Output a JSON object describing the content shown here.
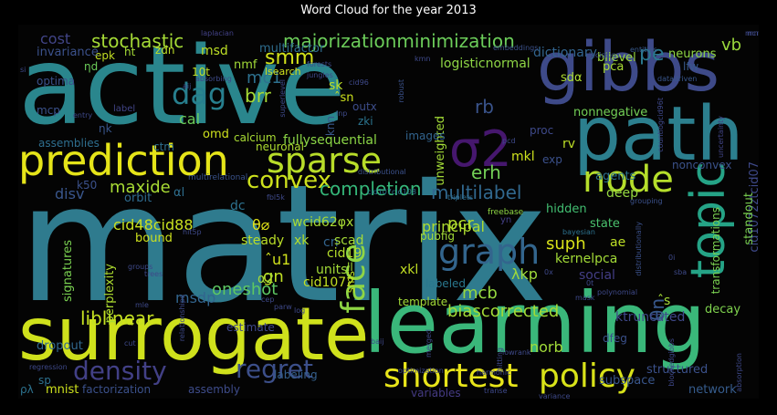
{
  "title": "Word Cloud for the year 2013",
  "words": [
    {
      "text": "matrix",
      "color": "#2f7b8e"
    },
    {
      "text": "active",
      "color": "#2a868d"
    },
    {
      "text": "learning",
      "color": "#3ab77a"
    },
    {
      "text": "surrogate",
      "color": "#cfe11c"
    },
    {
      "text": "path",
      "color": "#2c7f8e"
    },
    {
      "text": "gibbs",
      "color": "#3e4a89"
    },
    {
      "text": "prediction",
      "color": "#e5e419"
    },
    {
      "text": "topic",
      "color": "#25a386"
    },
    {
      "text": "sparse",
      "color": "#b8dd29"
    },
    {
      "text": "σ2",
      "color": "#46176e"
    },
    {
      "text": "node",
      "color": "#b5de2b"
    },
    {
      "text": "graph",
      "color": "#33658d"
    },
    {
      "text": "face",
      "color": "#8fd644"
    },
    {
      "text": "shortest",
      "color": "#e8e51a"
    },
    {
      "text": "policy",
      "color": "#d8e219"
    },
    {
      "text": "density",
      "color": "#424086"
    },
    {
      "text": "regret",
      "color": "#3c4f8a"
    },
    {
      "text": "dag",
      "color": "#277f8e"
    },
    {
      "text": "convex",
      "color": "#cde11d"
    },
    {
      "text": "stochastic",
      "color": "#a5db36"
    },
    {
      "text": "majorizationminimization",
      "color": "#6ccd5a"
    },
    {
      "text": "rb",
      "color": "#3a548c"
    },
    {
      "text": "multilabel",
      "color": "#31688e"
    },
    {
      "text": "smm",
      "color": "#d2e21b"
    },
    {
      "text": "brr",
      "color": "#a8db34"
    },
    {
      "text": "mc1",
      "color": "#2d708e"
    },
    {
      "text": "pe",
      "color": "#2a788e"
    },
    {
      "text": "vb",
      "color": "#9bd93c"
    },
    {
      "text": "cost",
      "color": "#414487"
    },
    {
      "text": "completion",
      "color": "#35b779"
    },
    {
      "text": "erh",
      "color": "#73d056"
    },
    {
      "text": "pcr",
      "color": "#b5de2b"
    },
    {
      "text": "suph",
      "color": "#d8e219"
    },
    {
      "text": "principal",
      "color": "#addc30"
    },
    {
      "text": "mcb",
      "color": "#95d840"
    },
    {
      "text": "biascorrected",
      "color": "#a2da37"
    },
    {
      "text": "liblinear",
      "color": "#c5e021"
    },
    {
      "text": "oneshot",
      "color": "#5dc863"
    },
    {
      "text": "θn",
      "color": "#38588c"
    },
    {
      "text": "maxide",
      "color": "#a8db34"
    },
    {
      "text": "disv",
      "color": "#39568c"
    },
    {
      "text": "norb",
      "color": "#a0da39"
    },
    {
      "text": "ktruncated",
      "color": "#3f4889"
    },
    {
      "text": "structured",
      "color": "#3b518b"
    },
    {
      "text": "subspace",
      "color": "#39568c"
    },
    {
      "text": "network",
      "color": "#365c8d"
    },
    {
      "text": "cid1072ztcid07",
      "color": "#3e4989"
    },
    {
      "text": "transformations",
      "color": "#7ad151"
    },
    {
      "text": "decay",
      "color": "#7fd34e"
    },
    {
      "text": "standout",
      "color": "#7ad151"
    },
    {
      "text": "msdp",
      "color": "#32658e"
    },
    {
      "text": "steady",
      "color": "#bade28"
    },
    {
      "text": "cid48cid88",
      "color": "#c8e020"
    },
    {
      "text": "gn",
      "color": "#c0df25"
    },
    {
      "text": "θ⌀",
      "color": "#e2e418"
    },
    {
      "text": "ˆu1",
      "color": "#d0e11c"
    },
    {
      "text": "α2",
      "color": "#a2da37"
    },
    {
      "text": "units",
      "color": "#a2da37"
    },
    {
      "text": "cid1072",
      "color": "#c2df23"
    },
    {
      "text": "cid19",
      "color": "#b5de2b"
    },
    {
      "text": "cn",
      "color": "#32648e"
    },
    {
      "text": "xk",
      "color": "#b2dd2d"
    },
    {
      "text": "wcid62φx",
      "color": "#a8db34"
    },
    {
      "text": "scad",
      "color": "#a5db36"
    },
    {
      "text": "ae",
      "color": "#bddf26"
    },
    {
      "text": "state",
      "color": "#4ac16d"
    },
    {
      "text": "hidden",
      "color": "#42be71"
    },
    {
      "text": "λkp",
      "color": "#9fda3a"
    },
    {
      "text": "social",
      "color": "#433e85"
    },
    {
      "text": "kernelpca",
      "color": "#a2da37"
    },
    {
      "text": "deep",
      "color": "#95d840"
    },
    {
      "text": "agents",
      "color": "#2c728e"
    },
    {
      "text": "nonconvex",
      "color": "#3b528b"
    },
    {
      "text": "fullysequential",
      "color": "#8bd646"
    },
    {
      "text": "neuronal",
      "color": "#addc30"
    },
    {
      "text": "calcium",
      "color": "#a8db34"
    },
    {
      "text": "omd",
      "color": "#cde11d"
    },
    {
      "text": "ctm",
      "color": "#2e6e8e"
    },
    {
      "text": "cal",
      "color": "#6ccd5a"
    },
    {
      "text": "nmf",
      "color": "#a2da37"
    },
    {
      "text": "msd",
      "color": "#bddf26"
    },
    {
      "text": "multifactor",
      "color": "#2e6d8e"
    },
    {
      "text": "logisticnormal",
      "color": "#8ed645"
    },
    {
      "text": "dictionary",
      "color": "#32648e"
    },
    {
      "text": "bilevel",
      "color": "#99d83d"
    },
    {
      "text": "neurons",
      "color": "#8fd744"
    },
    {
      "text": "lfw",
      "color": "#38598c"
    },
    {
      "text": "pca",
      "color": "#a8db34"
    },
    {
      "text": "sdα",
      "color": "#addc30"
    },
    {
      "text": "nonnegative",
      "color": "#73d056"
    },
    {
      "text": "unweighted",
      "color": "#a2da37"
    },
    {
      "text": "mkl",
      "color": "#cde11d"
    },
    {
      "text": "rv",
      "color": "#bddf26"
    },
    {
      "text": "proc",
      "color": "#3e4989"
    },
    {
      "text": "images",
      "color": "#32648e"
    },
    {
      "text": "exp",
      "color": "#3b518b"
    },
    {
      "text": "zki",
      "color": "#2b748e"
    },
    {
      "text": "outx",
      "color": "#3d4d8a"
    },
    {
      "text": "knn",
      "color": "#38588c"
    },
    {
      "text": "sk",
      "color": "#bddf26"
    },
    {
      "text": "ˆsn",
      "color": "#cde11d"
    },
    {
      "text": "lsearch",
      "color": "#d0e11c"
    },
    {
      "text": "10t",
      "color": "#c0df25"
    },
    {
      "text": "zdn",
      "color": "#bddf26"
    },
    {
      "text": "ht",
      "color": "#a5db36"
    },
    {
      "text": "epk",
      "color": "#c2df23"
    },
    {
      "text": "invariance",
      "color": "#3b518b"
    },
    {
      "text": "ηd",
      "color": "#6ccd5a"
    },
    {
      "text": "optima",
      "color": "#3b518b"
    },
    {
      "text": "mcp",
      "color": "#3b528b"
    },
    {
      "text": "ηk",
      "color": "#39568c"
    },
    {
      "text": "assemblies",
      "color": "#2e6e8e"
    },
    {
      "text": "k50",
      "color": "#3b518b"
    },
    {
      "text": "orbit",
      "color": "#2f6b8e"
    },
    {
      "text": "αl",
      "color": "#2e6e8e"
    },
    {
      "text": "bound",
      "color": "#cde11d"
    },
    {
      "text": "signatures",
      "color": "#7ad151"
    },
    {
      "text": "perplexity",
      "color": "#addc30"
    },
    {
      "text": "dropout",
      "color": "#31688e"
    },
    {
      "text": "sp",
      "color": "#2d708e"
    },
    {
      "text": "ρλ",
      "color": "#2c728e"
    },
    {
      "text": "mnist",
      "color": "#cde11d"
    },
    {
      "text": "factorization",
      "color": "#3b518b"
    },
    {
      "text": "assembly",
      "color": "#3e4c8a"
    },
    {
      "text": "labeling",
      "color": "#35608d"
    },
    {
      "text": "variables",
      "color": "#443a83"
    },
    {
      "text": "template",
      "color": "#a2da37"
    },
    {
      "text": "xkl",
      "color": "#c2df23"
    },
    {
      "text": "sms",
      "color": "#bddf26"
    },
    {
      "text": "estimate",
      "color": "#3f4889"
    },
    {
      "text": "labeled",
      "color": "#2a788e"
    },
    {
      "text": "pubfig",
      "color": "#a2da37"
    },
    {
      "text": "ll",
      "color": "#a5db36"
    },
    {
      "text": "dfeg",
      "color": "#3b518b"
    },
    {
      "text": "ˆs",
      "color": "#a5db36"
    },
    {
      "text": "dc",
      "color": "#2c718e"
    },
    {
      "text": "multirelational",
      "color": "#3a538b"
    },
    {
      "text": "cid107cid108",
      "color": "#2c718e"
    },
    {
      "text": "bayesian",
      "color": "#2c718e"
    },
    {
      "text": "freebase",
      "color": "#8fd744"
    },
    {
      "text": "triplets",
      "color": "#2e6d8e"
    },
    {
      "text": "yn",
      "color": "#433e85"
    },
    {
      "text": "absorbing",
      "color": "#3e4a89"
    },
    {
      "text": "embeddings",
      "color": "#3b518b"
    },
    {
      "text": "datadriven",
      "color": "#39568c"
    },
    {
      "text": "entities",
      "color": "#38598c"
    },
    {
      "text": "countlogcid96t",
      "color": "#3f4889"
    },
    {
      "text": "uncertainty",
      "color": "#414487"
    },
    {
      "text": "laplacian",
      "color": "#424186"
    },
    {
      "text": "decision",
      "color": "#3b518b"
    },
    {
      "text": "forests",
      "color": "#3e4989"
    },
    {
      "text": "jungles",
      "color": "#3e4989"
    },
    {
      "text": "robust",
      "color": "#3b528b"
    },
    {
      "text": "superlevel",
      "color": "#3e4989"
    },
    {
      "text": "cid96",
      "color": "#3e4989"
    },
    {
      "text": "lnp",
      "color": "#3e4a89"
    },
    {
      "text": "distributional",
      "color": "#3b518b"
    },
    {
      "text": "grouping",
      "color": "#3b518b"
    },
    {
      "text": "distributionally",
      "color": "#3b518b"
    },
    {
      "text": "polynomial",
      "color": "#3e4989"
    },
    {
      "text": "blockedgibbs",
      "color": "#3f4889"
    },
    {
      "text": "optimization",
      "color": "#3e4989"
    },
    {
      "text": "harmonic",
      "color": "#3f4889"
    },
    {
      "text": "lowrank",
      "color": "#3e4989"
    },
    {
      "text": "hitting",
      "color": "#3e4989"
    },
    {
      "text": "mask",
      "color": "#3e4989"
    },
    {
      "text": "regression",
      "color": "#3e4989"
    },
    {
      "text": "absorption",
      "color": "#3e4989"
    },
    {
      "text": "variance",
      "color": "#3e4989"
    },
    {
      "text": "transe",
      "color": "#3e4989"
    },
    {
      "text": "relationships",
      "color": "#3e4989"
    },
    {
      "text": "groups",
      "color": "#3e4989"
    },
    {
      "text": "trees",
      "color": "#3e4989"
    },
    {
      "text": "label",
      "color": "#414487"
    },
    {
      "text": "entry",
      "color": "#3e4989"
    },
    {
      "text": "aij",
      "color": "#3e4989"
    },
    {
      "text": "kmn",
      "color": "#3e4989"
    },
    {
      "text": "mle",
      "color": "#3e4989"
    },
    {
      "text": "cut",
      "color": "#3e4989"
    },
    {
      "text": "baij",
      "color": "#3e4989"
    },
    {
      "text": "log",
      "color": "#3e4989"
    },
    {
      "text": "cep",
      "color": "#3e4989"
    },
    {
      "text": "parw",
      "color": "#3e4989"
    },
    {
      "text": "pcd",
      "color": "#3e4989"
    },
    {
      "text": "sba",
      "color": "#3e4989"
    },
    {
      "text": "mcm",
      "color": "#3e4989"
    },
    {
      "text": "mn",
      "color": "#3e4989"
    },
    {
      "text": "si",
      "color": "#3e4989"
    },
    {
      "text": "fbl5k",
      "color": "#3e4989"
    },
    {
      "text": "hit5p",
      "color": "#3e4989"
    },
    {
      "text": "merged",
      "color": "#3e4989"
    },
    {
      "text": "0t",
      "color": "#3e4989"
    },
    {
      "text": "0x",
      "color": "#3e4989"
    },
    {
      "text": "0i",
      "color": "#3e4989"
    }
  ]
}
